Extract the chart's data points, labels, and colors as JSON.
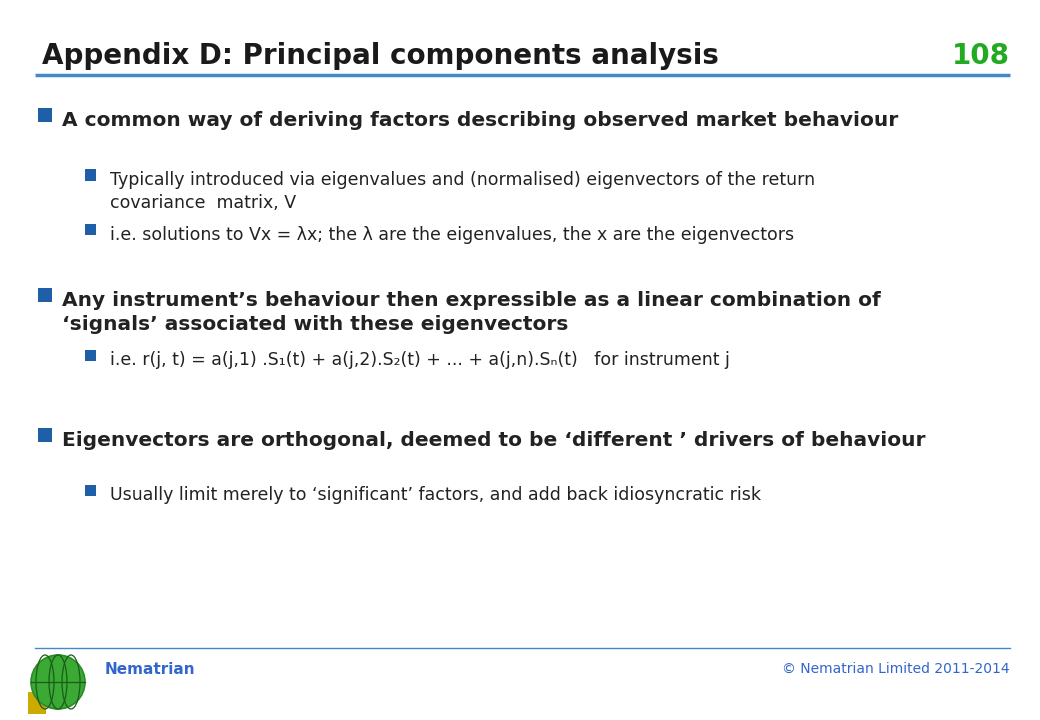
{
  "title": "Appendix D: Principal components analysis",
  "slide_number": "108",
  "title_color": "#1a1a1a",
  "title_font_size": 20,
  "slide_number_color": "#22aa22",
  "header_line_color": "#4488cc",
  "bullet_color": "#1e5fa8",
  "footer_text_left": "Nematrian",
  "footer_text_right": "© Nematrian Limited 2011-2014",
  "footer_color": "#3366cc",
  "background_color": "#ffffff",
  "text_color": "#222222",
  "font_size_l1": 14.5,
  "font_size_l2": 12.5,
  "bullets": [
    {
      "level": 1,
      "text": "A common way of deriving factors describing observed market behaviour"
    },
    {
      "level": 2,
      "text": "Typically introduced via eigenvalues and (normalised) eigenvectors of the return\ncovariance  matrix, V"
    },
    {
      "level": 2,
      "text": "i.e. solutions to Vx = λx; the λ are the eigenvalues, the x are the eigenvectors"
    },
    {
      "level": 1,
      "text": "Any instrument’s behaviour then expressible as a linear combination of\n‘signals’ associated with these eigenvectors"
    },
    {
      "level": 2,
      "text": "i.e. r(j, t) = a(j,1) .S₁(t) + a(j,2).S₂(t) + ... + a(j,n).Sₙ(t)   for instrument j"
    },
    {
      "level": 1,
      "text": "Eigenvectors are orthogonal, deemed to be ‘different ’ drivers of behaviour"
    },
    {
      "level": 2,
      "text": "Usually limit merely to ‘significant’ factors, and add back idiosyncratic risk"
    }
  ]
}
